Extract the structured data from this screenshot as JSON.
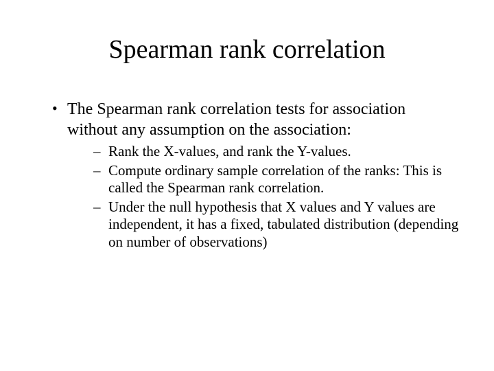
{
  "slide": {
    "title": "Spearman rank correlation",
    "title_fontsize": 38,
    "body_fontsize": 24,
    "sub_fontsize": 21,
    "background_color": "#ffffff",
    "text_color": "#000000",
    "font_family": "Times New Roman",
    "bullets": [
      {
        "text": "The Spearman rank correlation tests for association without any assumption on the association:",
        "sub": [
          "Rank the X-values, and rank the Y-values.",
          "Compute ordinary sample correlation of the ranks: This is called the Spearman rank correlation.",
          "Under the null hypothesis that X values and Y values are independent, it has a fixed, tabulated distribution (depending on number of observations)"
        ]
      }
    ]
  }
}
